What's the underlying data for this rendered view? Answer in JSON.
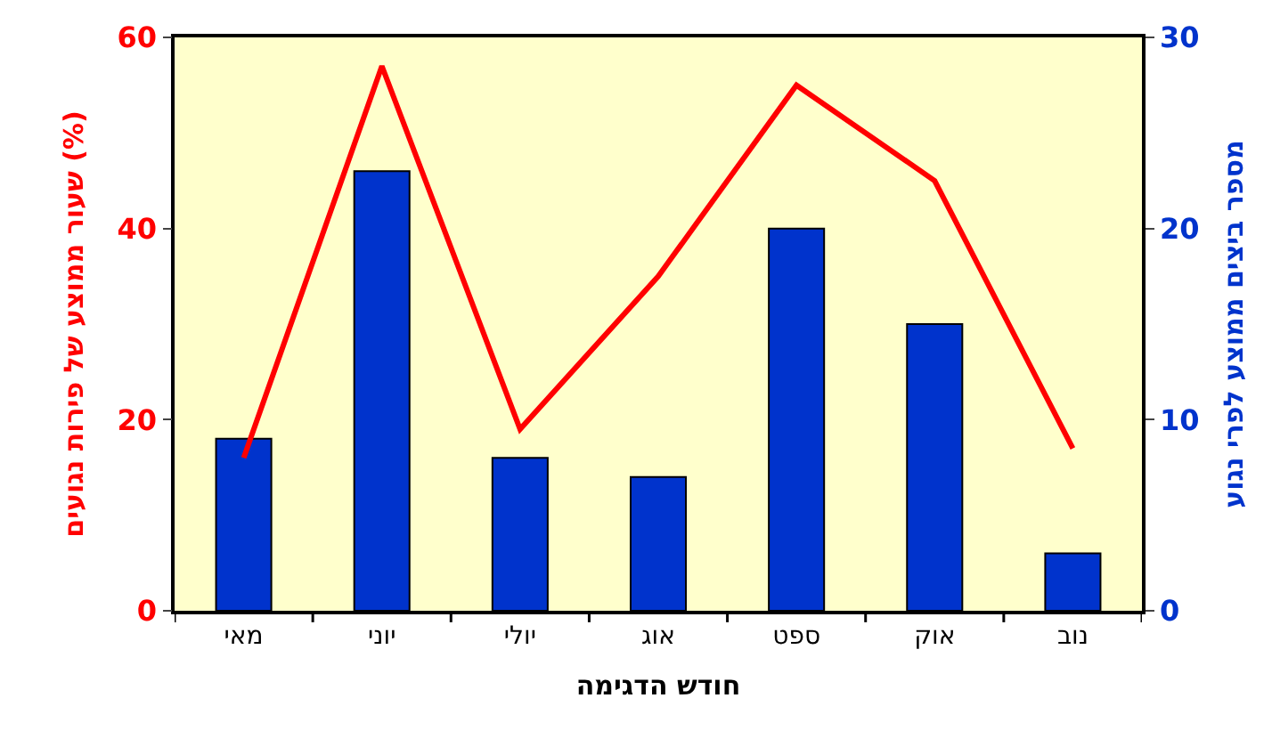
{
  "chart_data": {
    "type": "bar",
    "categories": [
      "מאי",
      "יוני",
      "יולי",
      "אוג",
      "ספט",
      "אוק",
      "נוב"
    ],
    "series": [
      {
        "axis": "y2",
        "color": "#0033cc",
        "values": [
          9,
          23,
          8,
          7,
          20,
          15,
          3
        ]
      },
      {
        "type": "line",
        "axis": "y",
        "color": "#ff0000",
        "values": [
          16,
          57,
          19,
          35,
          55,
          45,
          17
        ]
      }
    ],
    "xlabel": "חודש הדגימה",
    "ylabel": "שעור ממוצע של פירות נגועים (%)",
    "y2label": "מספר ביצים ממוצע לפרי נגוע",
    "ylim": [
      0,
      60
    ],
    "yticks": [
      0,
      20,
      40,
      60
    ],
    "y2lim": [
      0,
      30
    ],
    "y2ticks": [
      0,
      10,
      20,
      30
    ],
    "grid": false,
    "legend": false,
    "marker": "none",
    "line_style": "solid"
  }
}
